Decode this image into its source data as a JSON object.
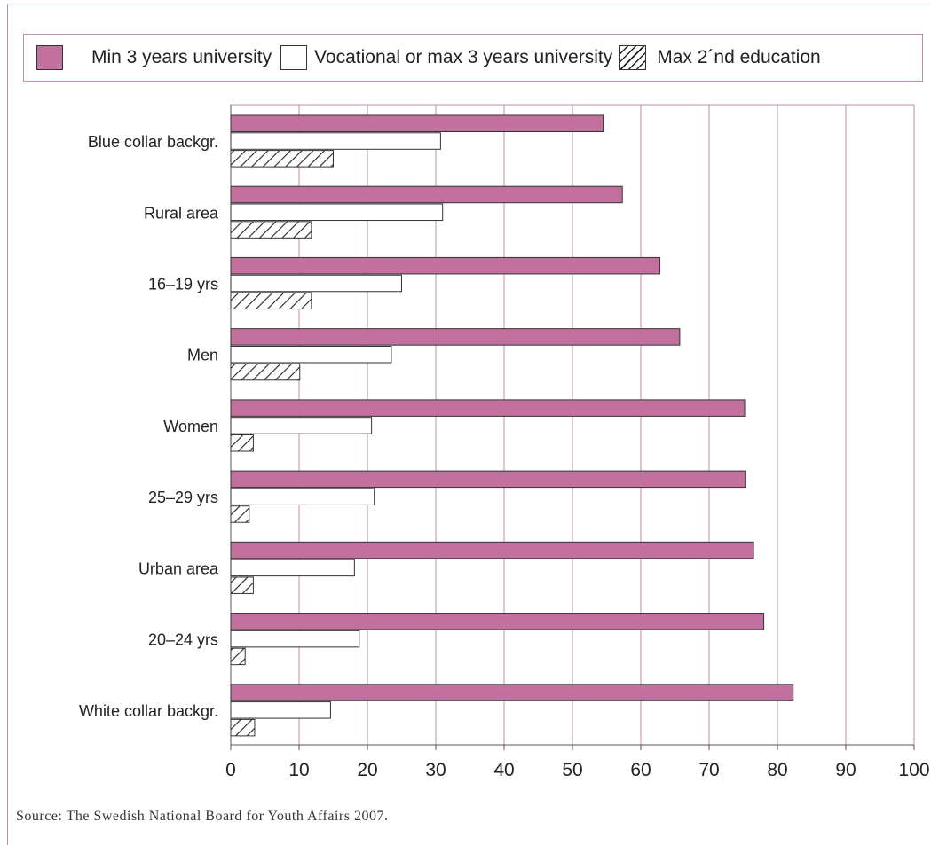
{
  "legend": {
    "item1": "Min 3 years university",
    "item2": "Vocational or max 3 years university",
    "item3": "Max 2´nd education"
  },
  "source": "Source: The Swedish National Board for Youth Affairs 2007.",
  "colors": {
    "series1": "#c2719f",
    "series2": "#ffffff",
    "grid": "#c58ab0",
    "stroke": "#333333"
  },
  "chart_data": {
    "type": "bar",
    "orientation": "horizontal",
    "categories": [
      "Blue collar backgr.",
      "Rural area",
      "16–19 yrs",
      "Men",
      "Women",
      "25–29 yrs",
      "Urban area",
      "20–24 yrs",
      "White collar backgr."
    ],
    "series": [
      {
        "name": "Min 3 years university",
        "fill": "solid",
        "values": [
          54.5,
          57.3,
          62.8,
          65.7,
          75.2,
          75.3,
          76.5,
          78.0,
          82.3
        ]
      },
      {
        "name": "Vocational or max 3 years university",
        "fill": "white",
        "values": [
          30.7,
          31.0,
          25.0,
          23.5,
          20.6,
          21.0,
          18.1,
          18.8,
          14.6
        ]
      },
      {
        "name": "Max 2´nd education",
        "fill": "hatch",
        "values": [
          15.0,
          11.8,
          11.8,
          10.1,
          3.3,
          2.7,
          3.3,
          2.1,
          3.5
        ]
      }
    ],
    "x_ticks": [
      0,
      10,
      20,
      30,
      40,
      50,
      60,
      70,
      80,
      90,
      100
    ],
    "xlim": [
      0,
      100
    ],
    "grid": true,
    "legend_position": "top"
  }
}
